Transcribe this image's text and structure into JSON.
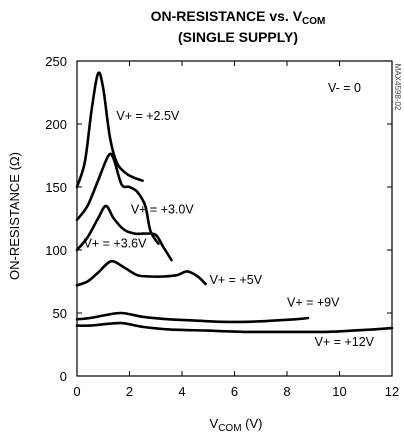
{
  "chart_data": {
    "type": "line",
    "title_line1": "ON-RESISTANCE vs. V",
    "title_line1_sub": "COM",
    "title_line2": "(SINGLE SUPPLY)",
    "xlabel": "V",
    "xlabel_sub": "COM",
    "xlabel_unit": " (V)",
    "ylabel": "ON-RESISTANCE (Ω)",
    "xlim": [
      0,
      12
    ],
    "ylim": [
      0,
      250
    ],
    "xticks": [
      0,
      2,
      4,
      6,
      8,
      10,
      12
    ],
    "yticks": [
      0,
      50,
      100,
      150,
      200,
      250
    ],
    "annotation": "V- = 0",
    "watermark": "MAX4598-02",
    "series": [
      {
        "name": "V+ = +2.5V",
        "x": [
          0.0,
          0.3,
          0.55,
          0.8,
          1.0,
          1.25,
          1.5,
          1.8,
          2.1,
          2.5
        ],
        "y": [
          150,
          170,
          210,
          240,
          228,
          190,
          170,
          162,
          158,
          155
        ]
      },
      {
        "name": "V+ = +3.0V",
        "x": [
          0.0,
          0.4,
          0.8,
          1.2,
          1.4,
          1.7,
          2.0,
          2.3,
          2.6,
          2.8,
          3.1
        ],
        "y": [
          124,
          135,
          155,
          175,
          172,
          152,
          150,
          146,
          135,
          115,
          105
        ]
      },
      {
        "name": "V+ = +3.6V",
        "x": [
          0.0,
          0.4,
          0.8,
          1.1,
          1.4,
          1.8,
          2.2,
          2.6,
          3.0,
          3.3,
          3.6
        ],
        "y": [
          100,
          110,
          125,
          135,
          125,
          116,
          113,
          113,
          112,
          102,
          92
        ]
      },
      {
        "name": "V+ = +5V",
        "x": [
          0.0,
          0.4,
          0.8,
          1.3,
          1.8,
          2.3,
          2.8,
          3.3,
          3.8,
          4.2,
          4.6,
          4.9
        ],
        "y": [
          72,
          75,
          82,
          91,
          86,
          80,
          79,
          79,
          80,
          83,
          79,
          73
        ]
      },
      {
        "name": "V+ = +9V",
        "x": [
          0.0,
          0.5,
          1.0,
          1.7,
          2.5,
          3.5,
          4.5,
          5.5,
          6.5,
          7.5,
          8.3,
          8.8
        ],
        "y": [
          45,
          46,
          48,
          50,
          47,
          45,
          44,
          43,
          43,
          44,
          45,
          46
        ]
      },
      {
        "name": "V+ = +12V",
        "x": [
          0.0,
          0.5,
          1.0,
          1.7,
          2.5,
          3.5,
          5.0,
          6.5,
          8.0,
          9.5,
          10.5,
          11.3,
          12.0
        ],
        "y": [
          40,
          40,
          41,
          42,
          39,
          37,
          36,
          35,
          35,
          35,
          36,
          37,
          38
        ]
      }
    ]
  }
}
